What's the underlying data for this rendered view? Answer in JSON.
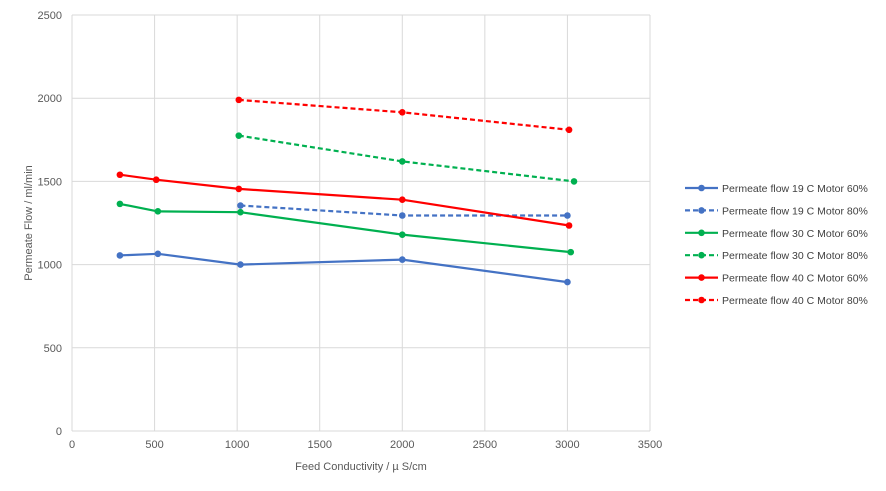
{
  "chart_data": {
    "type": "line",
    "title": "",
    "xlabel": "Feed Conductivity / µ S/cm",
    "ylabel": "Permeate Flow / ml/min",
    "xlim": [
      0,
      3500
    ],
    "ylim": [
      0,
      2500
    ],
    "x_ticks": [
      0,
      500,
      1000,
      1500,
      2000,
      2500,
      3000,
      3500
    ],
    "y_ticks": [
      0,
      500,
      1000,
      1500,
      2000,
      2500
    ],
    "x_tick_labels": [
      "0",
      "500",
      "1000",
      "1500",
      "2000",
      "2500",
      "3000",
      "3500"
    ],
    "y_tick_labels": [
      "0",
      "500",
      "1000",
      "1500",
      "2000",
      "2500"
    ],
    "grid": true,
    "legend_position": "right",
    "series": [
      {
        "name": "Permeate flow 19 C Motor 60%",
        "color": "#4472c4",
        "dash": "solid",
        "points": [
          [
            290,
            1055
          ],
          [
            520,
            1065
          ],
          [
            1020,
            1000
          ],
          [
            2000,
            1030
          ],
          [
            3000,
            895
          ]
        ]
      },
      {
        "name": "Permeate flow 19 C Motor 80%",
        "color": "#4472c4",
        "dash": "dashed",
        "points": [
          [
            1020,
            1355
          ],
          [
            2000,
            1295
          ],
          [
            3000,
            1295
          ]
        ]
      },
      {
        "name": "Permeate flow 30 C Motor 60%",
        "color": "#00b050",
        "dash": "solid",
        "points": [
          [
            290,
            1365
          ],
          [
            520,
            1320
          ],
          [
            1020,
            1315
          ],
          [
            2000,
            1180
          ],
          [
            3020,
            1075
          ]
        ]
      },
      {
        "name": "Permeate flow 30 C Motor 80%",
        "color": "#00b050",
        "dash": "dashed",
        "points": [
          [
            1010,
            1775
          ],
          [
            2000,
            1620
          ],
          [
            3040,
            1500
          ]
        ]
      },
      {
        "name": "Permeate flow 40 C Motor 60%",
        "color": "#ff0000",
        "dash": "solid",
        "points": [
          [
            290,
            1540
          ],
          [
            510,
            1510
          ],
          [
            1010,
            1455
          ],
          [
            2000,
            1390
          ],
          [
            3010,
            1235
          ]
        ]
      },
      {
        "name": "Permeate flow 40 C Motor 80%",
        "color": "#ff0000",
        "dash": "dashed",
        "points": [
          [
            1010,
            1990
          ],
          [
            2000,
            1915
          ],
          [
            3010,
            1810
          ]
        ]
      }
    ]
  }
}
